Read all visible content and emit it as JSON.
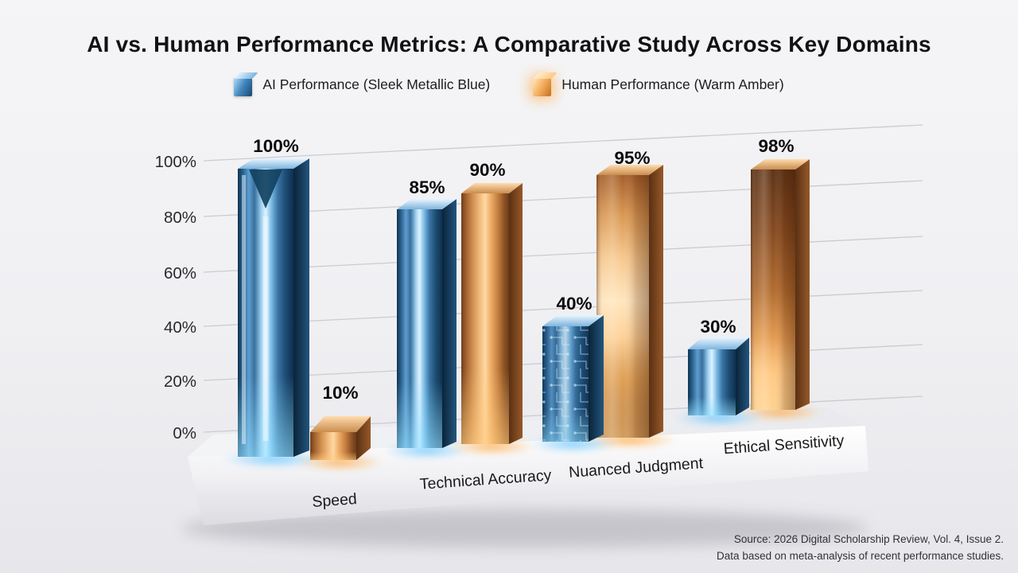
{
  "title": "AI vs. Human Performance Metrics: A Comparative Study Across Key Domains",
  "legend": {
    "ai": {
      "label": "AI Performance (Sleek Metallic Blue)",
      "color": "#4a8cc4"
    },
    "human": {
      "label": "Human Performance (Warm Amber)",
      "color": "#f0a95c"
    }
  },
  "source": {
    "line1": "Source: 2026 Digital Scholarship Review, Vol. 4, Issue 2.",
    "line2": "Data based on meta-analysis of recent performance studies."
  },
  "chart_data": {
    "type": "bar",
    "title": "AI vs. Human Performance Metrics: A Comparative Study Across Key Domains",
    "categories": [
      "Speed",
      "Technical Accuracy",
      "Nuanced Judgment",
      "Ethical Sensitivity"
    ],
    "series": [
      {
        "name": "AI Performance (Sleek Metallic Blue)",
        "color": "#4a8cc4",
        "values": [
          100,
          85,
          40,
          30
        ]
      },
      {
        "name": "Human Performance (Warm Amber)",
        "color": "#f0a95c",
        "values": [
          10,
          90,
          95,
          98
        ]
      }
    ],
    "value_label_format": "{v}%",
    "y_ticks": [
      "0%",
      "20%",
      "40%",
      "60%",
      "80%",
      "100%"
    ],
    "ylim": [
      0,
      100
    ],
    "grid": true,
    "legend_position": "top",
    "style": "3d-metallic-render"
  }
}
